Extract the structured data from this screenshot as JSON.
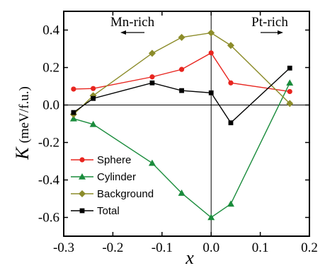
{
  "chart_data": {
    "type": "line",
    "xlabel": "x",
    "ylabel_symbol": "K",
    "ylabel_unit": "(meV/f.u.)",
    "xlim": [
      -0.3,
      0.2
    ],
    "ylim": [
      -0.7,
      0.5
    ],
    "xticks": [
      -0.3,
      -0.2,
      -0.1,
      0.0,
      0.1,
      0.2
    ],
    "xtick_labels": [
      "-0.3",
      "-0.2",
      "-0.1",
      "0.0",
      "0.1",
      "0.2"
    ],
    "yticks": [
      -0.6,
      -0.4,
      -0.2,
      0.0,
      0.2,
      0.4
    ],
    "ytick_labels": [
      "-0.6",
      "-0.4",
      "-0.2",
      "0.0",
      "0.2",
      "0.4"
    ],
    "reference_lines": {
      "horizontal_y": 0.0,
      "vertical_x": 0.0
    },
    "annotations": [
      {
        "text": "Mn-rich",
        "arrow": "left"
      },
      {
        "text": "Pt-rich",
        "arrow": "right"
      }
    ],
    "legend_position": "bottom-left",
    "x": [
      -0.28,
      -0.24,
      -0.12,
      -0.06,
      0.0,
      0.04,
      0.16
    ],
    "series": [
      {
        "name": "Sphere",
        "color": "#e8251f",
        "marker": "circle",
        "values": [
          0.085,
          0.088,
          0.15,
          0.19,
          0.278,
          0.118,
          0.072
        ]
      },
      {
        "name": "Cylinder",
        "color": "#1a8c3c",
        "marker": "triangle",
        "values": [
          -0.073,
          -0.103,
          -0.31,
          -0.47,
          -0.6,
          -0.528,
          0.118
        ]
      },
      {
        "name": "Background",
        "color": "#8c8c2a",
        "marker": "diamond",
        "values": [
          -0.05,
          0.05,
          0.276,
          0.361,
          0.385,
          0.318,
          0.008
        ]
      },
      {
        "name": "Total",
        "color": "#000000",
        "marker": "square",
        "values": [
          -0.04,
          0.035,
          0.118,
          0.077,
          0.065,
          -0.095,
          0.197
        ]
      }
    ]
  }
}
